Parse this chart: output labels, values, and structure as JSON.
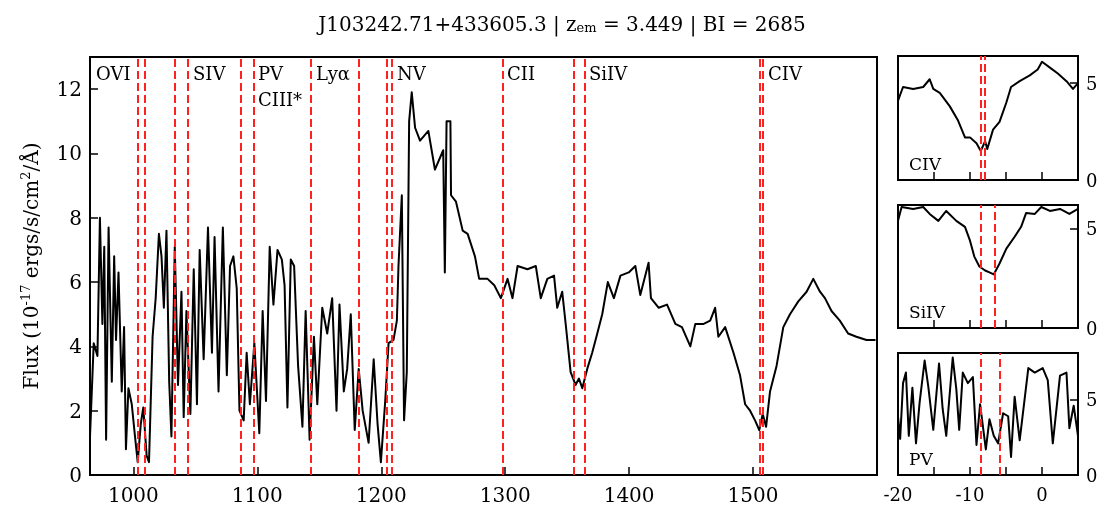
{
  "chart_data": [
    {
      "type": "line",
      "title": "J103242.71+433605.3 | z$_{em}$ = 3.449 | BI = 2685",
      "ylabel": "Flux (10$^{-17}$ ergs/s/cm$^{2}$/Å)",
      "xlim": [
        965,
        1600
      ],
      "ylim": [
        0,
        13
      ],
      "xticks": [
        1000,
        1100,
        1200,
        1300,
        1400,
        1500
      ],
      "yticks": [
        0,
        2,
        4,
        6,
        8,
        10,
        12
      ],
      "grid": false,
      "line_style": "solid",
      "marker": "none",
      "series": [
        {
          "color": "#000000",
          "x": [
            965,
            968,
            971,
            973,
            975,
            976.5,
            978,
            980,
            982.6,
            984.5,
            986,
            988,
            990.6,
            992.5,
            994,
            996,
            998.7,
            1001.3,
            1003.5,
            1006,
            1008,
            1010.7,
            1012.6,
            1015.5,
            1018,
            1020.6,
            1022.7,
            1024.6,
            1026.7,
            1028.9,
            1030.7,
            1033.4,
            1036,
            1038.8,
            1040.6,
            1042.8,
            1046,
            1048.7,
            1051.3,
            1053.5,
            1056.7,
            1060.2,
            1063.4,
            1065.5,
            1068.7,
            1072.2,
            1075.4,
            1078,
            1080.7,
            1083.4,
            1085.6,
            1089,
            1091.4,
            1094,
            1097.6,
            1101.6,
            1104.3,
            1107,
            1110,
            1113,
            1116.3,
            1119.8,
            1122,
            1124.3,
            1127,
            1129.7,
            1132.9,
            1136.4,
            1139,
            1142.2,
            1145.7,
            1148.4,
            1152.4,
            1156.4,
            1160.4,
            1163.9,
            1166.3,
            1169.8,
            1172.5,
            1175.4,
            1178.6,
            1181.8,
            1185,
            1189.8,
            1193.9,
            1197,
            1199.7,
            1203.2,
            1205.9,
            1209.9,
            1212.6,
            1213.9,
            1216.6,
            1218.4,
            1220.6,
            1222.5,
            1224.6,
            1227.3,
            1231.3,
            1238,
            1243.3,
            1250,
            1251.3,
            1252.7,
            1255.8,
            1256.3,
            1260.3,
            1265.7,
            1269.7,
            1275.6,
            1279,
            1285.8,
            1291.2,
            1296.5,
            1301.9,
            1305.9,
            1310,
            1318,
            1324.7,
            1328.7,
            1334,
            1339.4,
            1342,
            1346,
            1348.8,
            1352.8,
            1356.8,
            1359.5,
            1362.2,
            1366.2,
            1370.2,
            1374.3,
            1378.3,
            1382.8,
            1387.7,
            1393,
            1399.7,
            1405,
            1409,
            1415.7,
            1417.6,
            1423.9,
            1430.6,
            1437.3,
            1442.6,
            1449.4,
            1453.4,
            1460.1,
            1465.4,
            1469.4,
            1472,
            1477.5,
            1484.2,
            1489.5,
            1493.6,
            1497.6,
            1501.6,
            1505,
            1507.8,
            1510.5,
            1513.7,
            1519,
            1524.4,
            1529.8,
            1536.5,
            1543.2,
            1548.6,
            1554,
            1558,
            1563.3,
            1570,
            1576.7,
            1583.4,
            1591.5,
            1598.2
          ],
          "values": [
            1.2,
            4.1,
            3.7,
            8.0,
            4.7,
            7.1,
            1.1,
            7.7,
            2.9,
            6.8,
            4.2,
            6.3,
            2.6,
            4.6,
            0.8,
            2.7,
            2.2,
            1.2,
            0.4,
            1.6,
            2.1,
            0.6,
            0.4,
            4.3,
            5.5,
            7.5,
            6.8,
            5.2,
            7.6,
            2.9,
            1.2,
            7.1,
            2.8,
            5.7,
            1.8,
            5.1,
            1.9,
            6.4,
            2.2,
            7.0,
            3.6,
            7.7,
            3.8,
            7.4,
            2.6,
            7.7,
            3.1,
            6.5,
            6.8,
            5.8,
            2.0,
            1.7,
            3.8,
            2.2,
            4.1,
            1.3,
            5.1,
            2.3,
            7.1,
            5.3,
            7.0,
            6.7,
            5.9,
            2.1,
            6.7,
            6.5,
            3.4,
            1.5,
            5.1,
            1.1,
            4.3,
            2.2,
            5.2,
            4.4,
            5.5,
            2.0,
            5.3,
            2.6,
            3.3,
            5.0,
            1.4,
            3.3,
            2.0,
            1.0,
            3.6,
            1.6,
            0.4,
            2.3,
            4.1,
            4.2,
            4.8,
            6.5,
            8.7,
            1.7,
            3.2,
            11.0,
            11.9,
            10.8,
            10.4,
            10.7,
            9.5,
            10.1,
            6.3,
            11.0,
            11.0,
            8.7,
            8.5,
            7.6,
            7.5,
            6.8,
            6.1,
            6.1,
            5.9,
            5.5,
            6.1,
            5.5,
            6.5,
            6.4,
            6.5,
            5.5,
            6.1,
            6.2,
            5.2,
            5.7,
            4.7,
            3.2,
            2.8,
            3.0,
            2.7,
            3.3,
            3.8,
            4.4,
            5.0,
            6.0,
            5.5,
            6.2,
            6.3,
            6.5,
            5.6,
            6.6,
            5.5,
            5.2,
            5.3,
            4.7,
            4.6,
            4.0,
            4.7,
            4.7,
            4.8,
            5.2,
            4.3,
            4.6,
            3.8,
            3.1,
            2.2,
            2.0,
            1.7,
            1.4,
            1.9,
            1.5,
            2.6,
            3.4,
            4.6,
            5.0,
            5.4,
            5.7,
            6.1,
            5.7,
            5.5,
            5.1,
            4.8,
            4.4,
            4.3,
            4.2,
            4.2
          ]
        }
      ],
      "ref_lines": [
        {
          "axis": "x",
          "value": 1003.5,
          "color": "#ff2020",
          "line_style": "dashed"
        },
        {
          "axis": "x",
          "value": 1009,
          "color": "#ff2020",
          "line_style": "dashed"
        },
        {
          "axis": "x",
          "value": 1033.6,
          "color": "#ff2020",
          "line_style": "dashed"
        },
        {
          "axis": "x",
          "value": 1044,
          "color": "#ff2020",
          "line_style": "dashed"
        },
        {
          "axis": "x",
          "value": 1087,
          "color": "#ff2020",
          "line_style": "dashed"
        },
        {
          "axis": "x",
          "value": 1097,
          "color": "#ff2020",
          "line_style": "dashed"
        },
        {
          "axis": "x",
          "value": 1143,
          "color": "#ff2020",
          "line_style": "dashed"
        },
        {
          "axis": "x",
          "value": 1182,
          "color": "#ff2020",
          "line_style": "dashed"
        },
        {
          "axis": "x",
          "value": 1204.6,
          "color": "#ff2020",
          "line_style": "dashed"
        },
        {
          "axis": "x",
          "value": 1208.6,
          "color": "#ff2020",
          "line_style": "dashed"
        },
        {
          "axis": "x",
          "value": 1298,
          "color": "#ff2020",
          "line_style": "dashed"
        },
        {
          "axis": "x",
          "value": 1355,
          "color": "#ff2020",
          "line_style": "dashed"
        },
        {
          "axis": "x",
          "value": 1364,
          "color": "#ff2020",
          "line_style": "dashed"
        },
        {
          "axis": "x",
          "value": 1505.6,
          "color": "#ff2020",
          "line_style": "dashed"
        },
        {
          "axis": "x",
          "value": 1507.5,
          "color": "#ff2020",
          "line_style": "dashed"
        }
      ],
      "annotations": [
        "OVI",
        "SIV",
        "PV",
        "CIII*",
        "Lyα",
        "NV",
        "CII",
        "SiIV",
        "CIV"
      ]
    },
    {
      "type": "line",
      "title": "CIV",
      "xlim": [
        -20,
        5
      ],
      "ylim": [
        0,
        6.4
      ],
      "xticks": [
        -20,
        {
          "value": -15,
          "label": null
        },
        -10,
        {
          "value": -5,
          "label": null
        },
        0,
        {
          "value": 5,
          "label": null
        }
      ],
      "yticks": [
        0,
        5
      ],
      "tick_labels": "y",
      "line_style": "solid",
      "marker": "none",
      "series": [
        {
          "color": "#000000",
          "x": [
            -20,
            -19.3,
            -17.9,
            -16.5,
            -15.6,
            -15.1,
            -14.2,
            -12.8,
            -11.7,
            -10.7,
            -10,
            -9.1,
            -8.5,
            -7.9,
            -7.6,
            -6.8,
            -5.9,
            -4.95,
            -4.3,
            -3.1,
            -1.7,
            -0.6,
            0,
            1.1,
            2.2,
            3.4,
            4.3,
            5
          ],
          "values": [
            4.1,
            4.8,
            4.7,
            4.8,
            5.2,
            4.7,
            4.5,
            3.8,
            3.1,
            2.2,
            2.2,
            1.9,
            1.5,
            2.0,
            1.6,
            2.6,
            3.0,
            4.0,
            4.8,
            5.1,
            5.4,
            5.7,
            6.1,
            5.8,
            5.5,
            5.1,
            4.7,
            5.0
          ]
        }
      ],
      "ref_lines": [
        {
          "axis": "x",
          "value": -8.5,
          "color": "#ff2020",
          "line_style": "dashed"
        },
        {
          "axis": "x",
          "value": -7.9,
          "color": "#ff2020",
          "line_style": "dashed"
        }
      ]
    },
    {
      "type": "line",
      "title": "SiIV",
      "xlim": [
        -20,
        5
      ],
      "ylim": [
        0,
        6.2
      ],
      "xticks": [
        -20,
        {
          "value": -15,
          "label": null
        },
        -10,
        {
          "value": -5,
          "label": null
        },
        0,
        {
          "value": 5,
          "label": null
        }
      ],
      "yticks": [
        0,
        5
      ],
      "tick_labels": "y",
      "line_style": "solid",
      "marker": "none",
      "series": [
        {
          "color": "#000000",
          "x": [
            -20,
            -19.5,
            -17.9,
            -16.5,
            -15.6,
            -14.4,
            -13.3,
            -11.9,
            -10.7,
            -10,
            -9.4,
            -8.7,
            -7.9,
            -7.3,
            -6.7,
            -5.9,
            -4.95,
            -3.8,
            -2.9,
            -2.2,
            -1.0,
            -0.1,
            1.1,
            2.5,
            3.8,
            5
          ],
          "values": [
            5.4,
            6.1,
            6.0,
            6.1,
            5.75,
            5.4,
            5.9,
            5.4,
            5.1,
            4.4,
            3.6,
            3.1,
            2.9,
            2.8,
            2.7,
            3.25,
            4.0,
            4.6,
            5.1,
            5.8,
            5.75,
            6.1,
            5.9,
            6.0,
            5.75,
            6.0
          ]
        }
      ],
      "ref_lines": [
        {
          "axis": "x",
          "value": -8.5,
          "color": "#ff2020",
          "line_style": "dashed"
        },
        {
          "axis": "x",
          "value": -6.5,
          "color": "#ff2020",
          "line_style": "dashed"
        }
      ]
    },
    {
      "type": "line",
      "title": "PV",
      "xlim": [
        -20,
        5
      ],
      "ylim": [
        0,
        8.1
      ],
      "xticks": [
        -20,
        {
          "value": -15,
          "label": null
        },
        -10,
        {
          "value": -5,
          "label": null
        },
        0,
        {
          "value": 5,
          "label": null
        }
      ],
      "yticks": [
        0,
        5
      ],
      "line_style": "solid",
      "marker": "none",
      "series": [
        {
          "color": "#000000",
          "x": [
            -20,
            -19.7,
            -19.3,
            -18.9,
            -18.5,
            -18.0,
            -17.5,
            -17.0,
            -16.3,
            -15.8,
            -15.1,
            -14.3,
            -13.8,
            -13.3,
            -12.4,
            -11.9,
            -11.5,
            -11,
            -10.3,
            -9.6,
            -9.1,
            -8.6,
            -7.8,
            -7.3,
            -6.7,
            -6.1,
            -5.4,
            -4.7,
            -4.3,
            -3.8,
            -3.1,
            -1.9,
            -1.0,
            0.1,
            0.8,
            1.5,
            2.5,
            3.4,
            3.8,
            4.4,
            5
          ],
          "values": [
            3.9,
            2.4,
            6.1,
            6.8,
            2.6,
            5.8,
            2.1,
            4.8,
            7.6,
            5.9,
            3.0,
            7.4,
            4.4,
            2.6,
            7.8,
            5.7,
            3.0,
            6.8,
            6.1,
            6.5,
            2.0,
            4.7,
            1.7,
            3.7,
            2.6,
            2.1,
            4.1,
            3.9,
            1.2,
            5.2,
            2.3,
            7.1,
            6.8,
            7.1,
            6.3,
            2.1,
            6.6,
            6.8,
            3.1,
            4.6,
            2.6
          ]
        }
      ],
      "ref_lines": [
        {
          "axis": "x",
          "value": -8.5,
          "color": "#ff2020",
          "line_style": "dashed"
        },
        {
          "axis": "x",
          "value": -5.8,
          "color": "#ff2020",
          "line_style": "dashed"
        }
      ]
    }
  ]
}
